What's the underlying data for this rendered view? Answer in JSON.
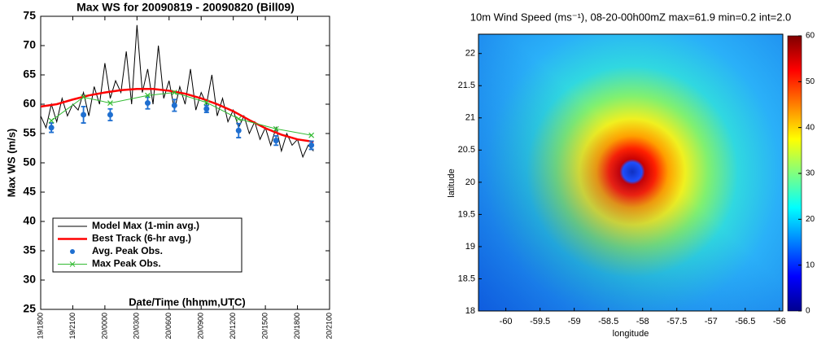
{
  "chart_data": [
    {
      "type": "line",
      "title": "Max WS for 20090819 - 20090820 (Bill09)",
      "xlabel": "Date/Time (hhmm,UTC)",
      "ylabel": "Max WS (m/s)",
      "xlim": [
        0,
        27
      ],
      "ylim": [
        25,
        75
      ],
      "xticks": [
        {
          "value": 0,
          "label": "19/1800"
        },
        {
          "value": 3,
          "label": "19/2100"
        },
        {
          "value": 6,
          "label": "20/0000"
        },
        {
          "value": 9,
          "label": "20/0300"
        },
        {
          "value": 12,
          "label": "20/0600"
        },
        {
          "value": 15,
          "label": "20/0900"
        },
        {
          "value": 18,
          "label": "20/1200"
        },
        {
          "value": 21,
          "label": "20/1500"
        },
        {
          "value": 24,
          "label": "20/1800"
        },
        {
          "value": 27,
          "label": "20/2100"
        }
      ],
      "yticks": [
        25,
        30,
        35,
        40,
        45,
        50,
        55,
        60,
        65,
        70,
        75
      ],
      "legend": "lower left",
      "series": [
        {
          "name": "Model Max (1-min avg.)",
          "color": "#000000",
          "style": "line",
          "x": [
            0,
            0.5,
            1,
            1.5,
            2,
            2.5,
            3,
            3.5,
            4,
            4.5,
            5,
            5.5,
            6,
            6.5,
            7,
            7.5,
            8,
            8.5,
            9,
            9.5,
            10,
            10.5,
            11,
            11.5,
            12,
            12.5,
            13,
            13.5,
            14,
            14.5,
            15,
            15.5,
            16,
            16.5,
            17,
            17.5,
            18,
            18.5,
            19,
            19.5,
            20,
            20.5,
            21,
            21.5,
            22,
            22.5,
            23,
            23.5,
            24,
            24.5,
            25,
            25.5
          ],
          "values": [
            58,
            56,
            60,
            57,
            61,
            58,
            60,
            59,
            62,
            58,
            63,
            60,
            67,
            61,
            64,
            62,
            69,
            60,
            73.5,
            62,
            66,
            60,
            70,
            61,
            64,
            59,
            63,
            60,
            66,
            59,
            62,
            60,
            65,
            58,
            61,
            57,
            59,
            56,
            58,
            55,
            57,
            54,
            56,
            53,
            56,
            52,
            55,
            53,
            54,
            51,
            53,
            52
          ]
        },
        {
          "name": "Best Track (6-hr avg.)",
          "color": "#ff0000",
          "style": "thick",
          "x": [
            0,
            1.5,
            3,
            4.5,
            6,
            7.5,
            9,
            10.5,
            12,
            13.5,
            15,
            16.5,
            18,
            19.5,
            21,
            22.5,
            24,
            25.5
          ],
          "values": [
            59.6,
            60,
            60.8,
            61.5,
            62,
            62.4,
            62.6,
            62.6,
            62.3,
            61.8,
            61,
            60,
            58.8,
            57.3,
            55.9,
            54.8,
            54,
            53.6
          ]
        },
        {
          "name": "Avg. Peak Obs.",
          "color": "#1f6fd0",
          "style": "errorbar",
          "x": [
            1,
            4,
            6.5,
            10,
            12.5,
            15.5,
            18.5,
            22,
            25.3
          ],
          "values": [
            56,
            58.2,
            58.2,
            60.2,
            59.8,
            59.2,
            55.5,
            53.8,
            53
          ],
          "errors": [
            0.8,
            1.4,
            1,
            1,
            1,
            0.6,
            1.2,
            0.8,
            0.7
          ]
        },
        {
          "name": "Max Peak Obs.",
          "color": "#33bb33",
          "style": "cross",
          "x": [
            1,
            4,
            6.5,
            10,
            12.5,
            15.5,
            18.5,
            22,
            25.3
          ],
          "values": [
            57.2,
            61.2,
            60.2,
            61.5,
            62,
            60.3,
            57.5,
            55.8,
            54.7
          ]
        }
      ]
    },
    {
      "type": "heatmap",
      "title": "10m Wind Speed (ms⁻¹), 08-20-00h00mZ max=61.9 min=0.2 int=2.0",
      "xlabel": "longitude",
      "ylabel": "latitude",
      "xlim": [
        -60.4,
        -55.95
      ],
      "ylim": [
        18,
        22.3
      ],
      "xticks": [
        -60,
        -59.5,
        -59,
        -58.5,
        -58,
        -57.5,
        -57,
        -56.5,
        -56
      ],
      "yticks": [
        18,
        18.5,
        19,
        19.5,
        20,
        20.5,
        21,
        21.5,
        22
      ],
      "colorbar_lim": [
        0,
        60
      ],
      "colorbar_ticks": [
        0,
        10,
        20,
        30,
        40,
        50,
        60
      ]
    }
  ]
}
